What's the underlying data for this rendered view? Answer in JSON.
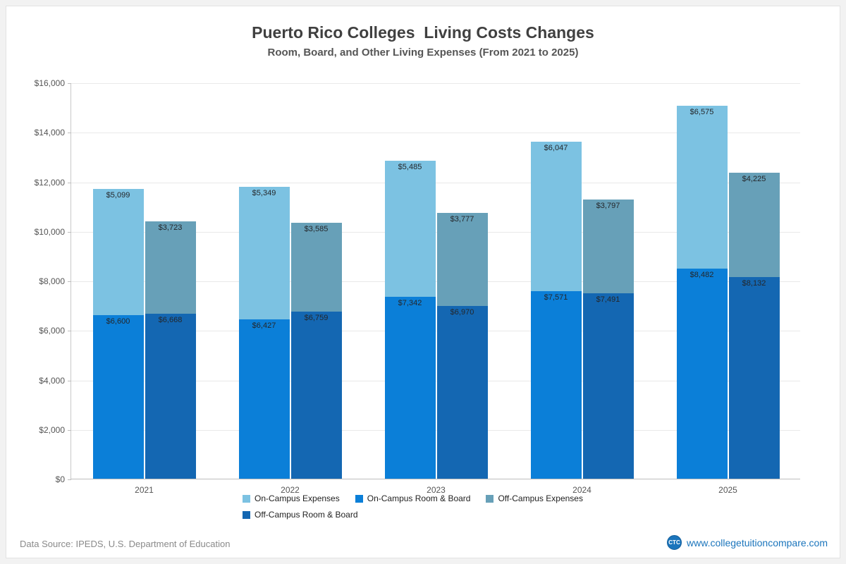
{
  "page": {
    "title": "Puerto Rico Colleges  Living Costs Changes",
    "subtitle": "Room, Board, and Other Living Expenses (From 2021 to 2025)",
    "source": "Data Source: IPEDS, U.S. Department of Education",
    "website": "www.collegetuitioncompare.com",
    "logo_text": "CTC"
  },
  "chart_data": {
    "type": "bar",
    "stacked": true,
    "title": "Puerto Rico Colleges  Living Costs Changes",
    "subtitle": "Room, Board, and Other Living Expenses (From 2021 to 2025)",
    "categories": [
      "2021",
      "2022",
      "2023",
      "2024",
      "2025"
    ],
    "series": [
      {
        "name": "On-Campus Room & Board",
        "color": "#0b7fd8",
        "values": [
          6600,
          6427,
          7342,
          7571,
          8482
        ]
      },
      {
        "name": "On-Campus Expenses",
        "color": "#7cc2e2",
        "values": [
          5099,
          5349,
          5485,
          6047,
          6575
        ]
      },
      {
        "name": "Off-Campus Room & Board",
        "color": "#1467b2",
        "values": [
          6668,
          6759,
          6970,
          7491,
          8132
        ]
      },
      {
        "name": "Off-Campus Expenses",
        "color": "#67a0b8",
        "values": [
          3723,
          3585,
          3777,
          3797,
          4225
        ]
      }
    ],
    "bar_pairs": [
      {
        "name": "on-campus",
        "bottom_series": 0,
        "top_series": 1
      },
      {
        "name": "off-campus",
        "bottom_series": 2,
        "top_series": 3
      }
    ],
    "legend_order": [
      1,
      0,
      3,
      2
    ],
    "xlabel": "",
    "ylabel": "",
    "ylim": [
      0,
      16000
    ],
    "ytick_step": 2000,
    "yticks": [
      "$0",
      "$2,000",
      "$4,000",
      "$6,000",
      "$8,000",
      "$10,000",
      "$12,000",
      "$14,000",
      "$16,000"
    ],
    "grid": "horizontal",
    "legend_position": "bottom",
    "value_label_format": "$#,###"
  }
}
